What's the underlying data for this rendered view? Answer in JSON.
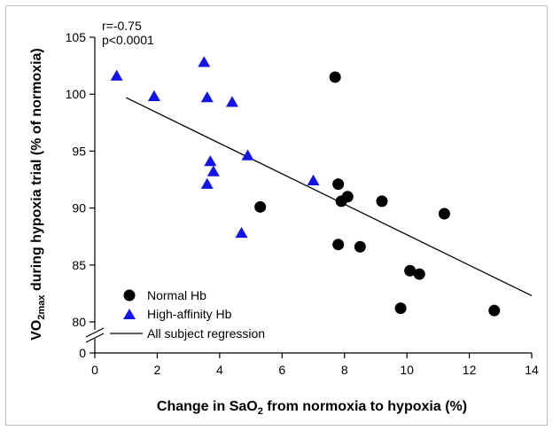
{
  "chart_data": {
    "type": "scatter",
    "title": "",
    "xlabel": "Change in SaO",
    "xlabel_sub": "2",
    "xlabel_rest": " from normoxia to hypoxia (%)",
    "ylabel": "VO",
    "ylabel_sub": "2max",
    "ylabel_rest": " during hypoxia trial (% of normoxia)",
    "xlim": [
      0,
      14
    ],
    "ylim_upper": [
      80,
      105
    ],
    "y_break": true,
    "x_ticks": [
      "0",
      "2",
      "4",
      "6",
      "8",
      "10",
      "12",
      "14"
    ],
    "y_ticks": [
      "0",
      "80",
      "85",
      "90",
      "95",
      "100",
      "105"
    ],
    "annotations": {
      "r": "r=-0.75",
      "p": "p<0.0001"
    },
    "legend": {
      "placement": "bottom-left",
      "normal_label": "Normal Hb",
      "high_label": "High-affinity Hb",
      "regression_label": "All subject regression"
    },
    "colors": {
      "normal": "#000000",
      "high": "#1414e6",
      "regression": "#000000"
    },
    "series": [
      {
        "name": "Normal Hb",
        "marker": "circle",
        "points": [
          [
            5.3,
            90.1
          ],
          [
            7.7,
            101.5
          ],
          [
            7.8,
            92.1
          ],
          [
            7.8,
            86.8
          ],
          [
            7.9,
            90.6
          ],
          [
            8.1,
            91.0
          ],
          [
            8.5,
            86.6
          ],
          [
            9.2,
            90.6
          ],
          [
            9.8,
            81.2
          ],
          [
            10.1,
            84.5
          ],
          [
            10.4,
            84.2
          ],
          [
            11.2,
            89.5
          ],
          [
            12.8,
            81.0
          ]
        ]
      },
      {
        "name": "High-affinity Hb",
        "marker": "triangle",
        "points": [
          [
            0.7,
            101.6
          ],
          [
            1.9,
            99.8
          ],
          [
            3.5,
            102.8
          ],
          [
            3.6,
            99.7
          ],
          [
            3.6,
            92.1
          ],
          [
            3.7,
            94.1
          ],
          [
            3.8,
            93.2
          ],
          [
            4.4,
            99.3
          ],
          [
            4.7,
            87.8
          ],
          [
            4.9,
            94.6
          ],
          [
            7.0,
            92.4
          ]
        ]
      }
    ],
    "regression": {
      "name": "All subject regression",
      "x": [
        1.0,
        14.0
      ],
      "y": [
        99.7,
        82.3
      ]
    }
  }
}
